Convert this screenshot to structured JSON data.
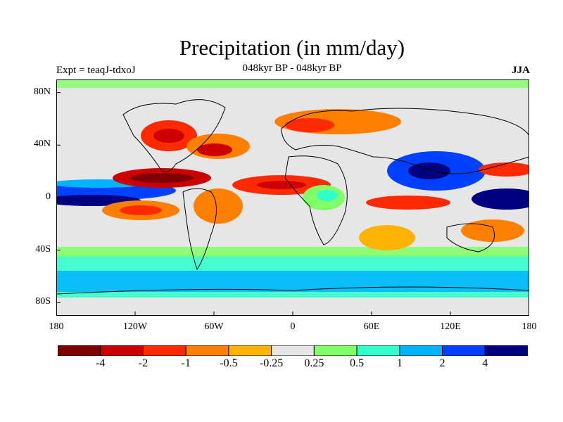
{
  "title": "Precipitation (in mm/day)",
  "subtitle": "048kyr BP - 048kyr BP",
  "experiment": "Expt = teaqJ-tdxoJ",
  "season": "JJA",
  "lat_labels": [
    "80N",
    "40N",
    "0",
    "40S",
    "80S"
  ],
  "lat_values": [
    80,
    40,
    0,
    -40,
    -80
  ],
  "lon_labels": [
    "180",
    "120W",
    "60W",
    "0",
    "60E",
    "120E",
    "180"
  ],
  "lon_values": [
    -180,
    -120,
    -60,
    0,
    60,
    120,
    180
  ],
  "colorbar": {
    "colors": [
      "#7f0000",
      "#cc0000",
      "#ff2a00",
      "#ff7f00",
      "#ffb300",
      "#e6e6e6",
      "#80ff66",
      "#33ffcc",
      "#00b3ff",
      "#0040ff",
      "#000080"
    ],
    "labels": [
      "-4",
      "-2",
      "-1",
      "-0.5",
      "-0.25",
      "0.25",
      "0.5",
      "1",
      "2",
      "4"
    ]
  }
}
